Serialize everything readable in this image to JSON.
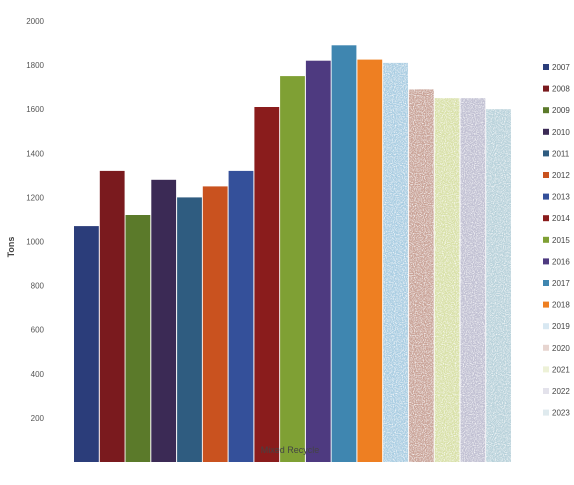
{
  "chart_data": {
    "type": "bar",
    "title": "",
    "xlabel": "Mixed Recycle",
    "ylabel": "Tons",
    "ylim": [
      0,
      2000
    ],
    "yticks": [
      "",
      "200",
      "400",
      "600",
      "800",
      "1000",
      "1200",
      "1400",
      "1600",
      "1800",
      "2000"
    ],
    "category": "Mixed Recycle",
    "grid": false,
    "legend_position": "right",
    "series": [
      {
        "name": "2007",
        "value": 1070,
        "color": "#2b3d7a",
        "pattern": false
      },
      {
        "name": "2008",
        "value": 1320,
        "color": "#7a1a1e",
        "pattern": false
      },
      {
        "name": "2009",
        "value": 1120,
        "color": "#5b7a2a",
        "pattern": false
      },
      {
        "name": "2010",
        "value": 1280,
        "color": "#3b2a55",
        "pattern": false
      },
      {
        "name": "2011",
        "value": 1200,
        "color": "#2f5c80",
        "pattern": false
      },
      {
        "name": "2012",
        "value": 1250,
        "color": "#c9521f",
        "pattern": false
      },
      {
        "name": "2013",
        "value": 1320,
        "color": "#34509a",
        "pattern": false
      },
      {
        "name": "2014",
        "value": 1610,
        "color": "#8a1c1c",
        "pattern": false
      },
      {
        "name": "2015",
        "value": 1750,
        "color": "#7fa034",
        "pattern": false
      },
      {
        "name": "2016",
        "value": 1820,
        "color": "#4e3a80",
        "pattern": false
      },
      {
        "name": "2017",
        "value": 1890,
        "color": "#3f86b0",
        "pattern": false
      },
      {
        "name": "2018",
        "value": 1825,
        "color": "#ee7f22",
        "pattern": false
      },
      {
        "name": "2019",
        "value": 1810,
        "color": "#a9cde2",
        "pattern": true
      },
      {
        "name": "2020",
        "value": 1690,
        "color": "#c9a296",
        "pattern": true
      },
      {
        "name": "2021",
        "value": 1650,
        "color": "#d8e0a6",
        "pattern": true
      },
      {
        "name": "2022",
        "value": 1650,
        "color": "#c0bfd2",
        "pattern": true
      },
      {
        "name": "2023",
        "value": 1600,
        "color": "#b7d1da",
        "pattern": true
      }
    ]
  }
}
